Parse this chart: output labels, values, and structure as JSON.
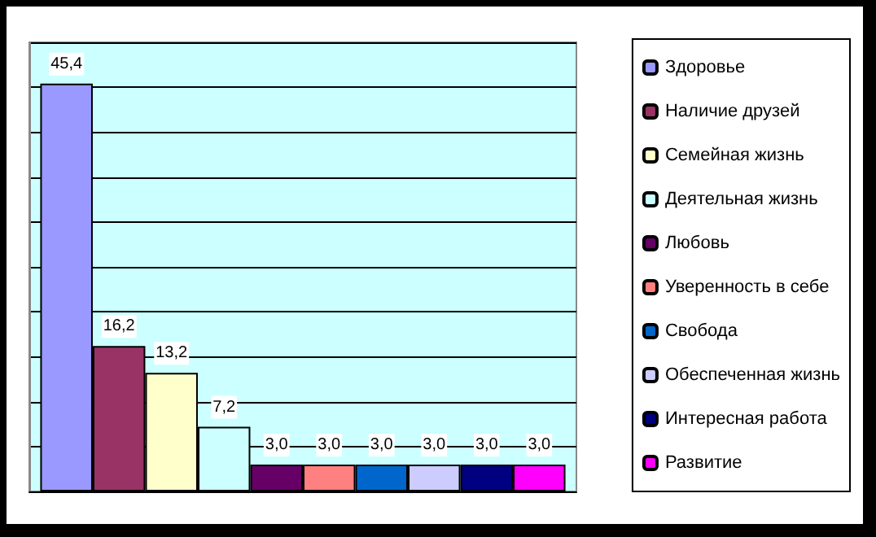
{
  "chart_data": {
    "type": "bar",
    "categories": [
      null
    ],
    "series": [
      {
        "name": "Здоровье",
        "color": "#9999ff",
        "values": [
          45.4
        ],
        "value_labels": [
          "45,4"
        ]
      },
      {
        "name": "Наличие друзей",
        "color": "#993366",
        "values": [
          16.2
        ],
        "value_labels": [
          "16,2"
        ]
      },
      {
        "name": "Семейная жизнь",
        "color": "#ffffcc",
        "values": [
          13.2
        ],
        "value_labels": [
          "13,2"
        ]
      },
      {
        "name": "Деятельная жизнь",
        "color": "#ccffff",
        "values": [
          7.2
        ],
        "value_labels": [
          "7,2"
        ]
      },
      {
        "name": "Любовь",
        "color": "#660066",
        "values": [
          3.0
        ],
        "value_labels": [
          "3,0"
        ]
      },
      {
        "name": "Уверенность в себе",
        "color": "#ff8080",
        "values": [
          3.0
        ],
        "value_labels": [
          "3,0"
        ]
      },
      {
        "name": "Свобода",
        "color": "#0066cc",
        "values": [
          3.0
        ],
        "value_labels": [
          "3,0"
        ]
      },
      {
        "name": "Обеспеченная жизнь",
        "color": "#ccccff",
        "values": [
          3.0
        ],
        "value_labels": [
          "3,0"
        ]
      },
      {
        "name": "Интересная работа",
        "color": "#000080",
        "values": [
          3.0
        ],
        "value_labels": [
          "3,0"
        ]
      },
      {
        "name": "Развитие",
        "color": "#ff00ff",
        "values": [
          3.0
        ],
        "value_labels": [
          "3,0"
        ]
      }
    ],
    "ylim": [
      0,
      50
    ],
    "yticks": [
      {
        "value": 0,
        "label": null
      },
      {
        "value": 5,
        "label": null
      },
      {
        "value": 10,
        "label": null
      },
      {
        "value": 15,
        "label": null
      },
      {
        "value": 20,
        "label": null
      },
      {
        "value": 25,
        "label": null
      },
      {
        "value": 30,
        "label": null
      },
      {
        "value": 35,
        "label": null
      },
      {
        "value": 40,
        "label": null
      },
      {
        "value": 45,
        "label": null
      },
      {
        "value": 50,
        "label": null
      }
    ],
    "grid": "y",
    "legend": "right"
  }
}
